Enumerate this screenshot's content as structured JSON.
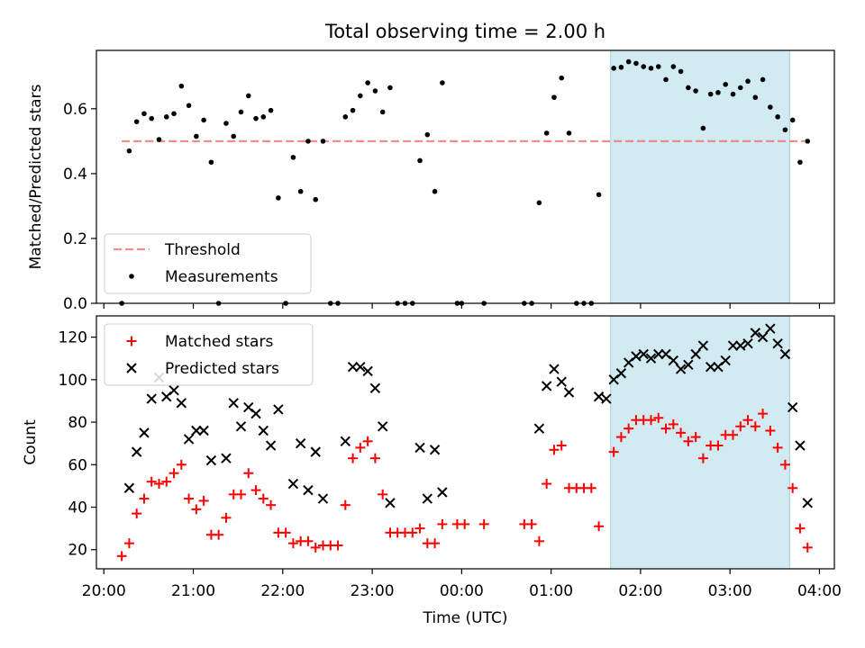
{
  "chart_data": [
    {
      "type": "scatter",
      "title": "Total observing time = 2.00 h",
      "xlabel": "",
      "ylabel": "Matched/Predicted stars",
      "xlim": [
        "20:00",
        "04:00"
      ],
      "ylim": [
        0,
        0.78
      ],
      "yticks": [
        "0.0",
        "0.2",
        "0.4",
        "0.6"
      ],
      "shaded_span": [
        "01:40",
        "03:40"
      ],
      "shade_color": "#add8e6",
      "legend_position": "lower left",
      "threshold": {
        "name": "Threshold",
        "value": 0.5,
        "x": [
          "20:12",
          "03:50"
        ],
        "color": "#f08080"
      },
      "series": [
        {
          "name": "Measurements",
          "marker": "dot",
          "color": "#000000",
          "points": [
            [
              "20:12",
              0.0
            ],
            [
              "20:17",
              0.47
            ],
            [
              "20:22",
              0.56
            ],
            [
              "20:27",
              0.585
            ],
            [
              "20:32",
              0.57
            ],
            [
              "20:37",
              0.505
            ],
            [
              "20:42",
              0.575
            ],
            [
              "20:47",
              0.585
            ],
            [
              "20:52",
              0.67
            ],
            [
              "20:57",
              0.61
            ],
            [
              "21:02",
              0.515
            ],
            [
              "21:07",
              0.565
            ],
            [
              "21:12",
              0.435
            ],
            [
              "21:17",
              0.0
            ],
            [
              "21:22",
              0.555
            ],
            [
              "21:27",
              0.515
            ],
            [
              "21:32",
              0.59
            ],
            [
              "21:37",
              0.64
            ],
            [
              "21:42",
              0.57
            ],
            [
              "21:47",
              0.575
            ],
            [
              "21:52",
              0.595
            ],
            [
              "21:57",
              0.325
            ],
            [
              "22:02",
              0.0
            ],
            [
              "22:07",
              0.45
            ],
            [
              "22:12",
              0.345
            ],
            [
              "22:17",
              0.5
            ],
            [
              "22:22",
              0.32
            ],
            [
              "22:27",
              0.5
            ],
            [
              "22:32",
              0.0
            ],
            [
              "22:37",
              0.0
            ],
            [
              "22:42",
              0.575
            ],
            [
              "22:47",
              0.595
            ],
            [
              "22:52",
              0.64
            ],
            [
              "22:57",
              0.68
            ],
            [
              "23:02",
              0.655
            ],
            [
              "23:07",
              0.59
            ],
            [
              "23:12",
              0.665
            ],
            [
              "23:17",
              0.0
            ],
            [
              "23:22",
              0.0
            ],
            [
              "23:27",
              0.0
            ],
            [
              "23:32",
              0.44
            ],
            [
              "23:37",
              0.52
            ],
            [
              "23:42",
              0.345
            ],
            [
              "23:47",
              0.68
            ],
            [
              "23:57",
              0.0
            ],
            [
              "00:00",
              0.0
            ],
            [
              "00:15",
              0.0
            ],
            [
              "00:42",
              0.0
            ],
            [
              "00:47",
              0.0
            ],
            [
              "00:52",
              0.31
            ],
            [
              "00:57",
              0.525
            ],
            [
              "01:02",
              0.635
            ],
            [
              "01:07",
              0.695
            ],
            [
              "01:12",
              0.525
            ],
            [
              "01:17",
              0.0
            ],
            [
              "01:22",
              0.0
            ],
            [
              "01:27",
              0.0
            ],
            [
              "01:32",
              0.335
            ],
            [
              "01:42",
              0.725
            ],
            [
              "01:47",
              0.728
            ],
            [
              "01:52",
              0.745
            ],
            [
              "01:57",
              0.74
            ],
            [
              "02:02",
              0.73
            ],
            [
              "02:07",
              0.725
            ],
            [
              "02:12",
              0.73
            ],
            [
              "02:17",
              0.69
            ],
            [
              "02:22",
              0.73
            ],
            [
              "02:27",
              0.715
            ],
            [
              "02:32",
              0.665
            ],
            [
              "02:37",
              0.655
            ],
            [
              "02:42",
              0.54
            ],
            [
              "02:47",
              0.645
            ],
            [
              "02:52",
              0.65
            ],
            [
              "02:57",
              0.675
            ],
            [
              "03:02",
              0.645
            ],
            [
              "03:07",
              0.665
            ],
            [
              "03:12",
              0.685
            ],
            [
              "03:17",
              0.635
            ],
            [
              "03:22",
              0.69
            ],
            [
              "03:27",
              0.605
            ],
            [
              "03:32",
              0.575
            ],
            [
              "03:37",
              0.535
            ],
            [
              "03:42",
              0.565
            ],
            [
              "03:47",
              0.435
            ],
            [
              "03:52",
              0.5
            ]
          ]
        }
      ]
    },
    {
      "type": "scatter",
      "title": "",
      "xlabel": "Time (UTC)",
      "ylabel": "Count",
      "xlim": [
        "20:00",
        "04:00"
      ],
      "ylim": [
        11,
        130
      ],
      "yticks": [
        "20",
        "40",
        "60",
        "80",
        "100",
        "120"
      ],
      "xticks": [
        "20:00",
        "21:00",
        "22:00",
        "23:00",
        "00:00",
        "01:00",
        "02:00",
        "03:00",
        "04:00"
      ],
      "shaded_span": [
        "01:40",
        "03:40"
      ],
      "shade_color": "#add8e6",
      "legend_position": "upper left",
      "series": [
        {
          "name": "Matched stars",
          "marker": "plus",
          "color": "#ff0000",
          "points": [
            [
              "20:12",
              17
            ],
            [
              "20:17",
              23
            ],
            [
              "20:22",
              37
            ],
            [
              "20:27",
              44
            ],
            [
              "20:32",
              52
            ],
            [
              "20:37",
              51
            ],
            [
              "20:42",
              52
            ],
            [
              "20:47",
              56
            ],
            [
              "20:52",
              60
            ],
            [
              "20:57",
              44
            ],
            [
              "21:02",
              39
            ],
            [
              "21:07",
              43
            ],
            [
              "21:12",
              27
            ],
            [
              "21:17",
              27
            ],
            [
              "21:22",
              35
            ],
            [
              "21:27",
              46
            ],
            [
              "21:32",
              46
            ],
            [
              "21:37",
              56
            ],
            [
              "21:42",
              48
            ],
            [
              "21:47",
              44
            ],
            [
              "21:52",
              41
            ],
            [
              "21:57",
              28
            ],
            [
              "22:02",
              28
            ],
            [
              "22:07",
              23
            ],
            [
              "22:12",
              24
            ],
            [
              "22:17",
              24
            ],
            [
              "22:22",
              21
            ],
            [
              "22:27",
              22
            ],
            [
              "22:32",
              22
            ],
            [
              "22:37",
              22
            ],
            [
              "22:42",
              41
            ],
            [
              "22:47",
              63
            ],
            [
              "22:52",
              68
            ],
            [
              "22:57",
              71
            ],
            [
              "23:02",
              63
            ],
            [
              "23:07",
              46
            ],
            [
              "23:12",
              28
            ],
            [
              "23:17",
              28
            ],
            [
              "23:22",
              28
            ],
            [
              "23:27",
              28
            ],
            [
              "23:32",
              30
            ],
            [
              "23:37",
              23
            ],
            [
              "23:42",
              23
            ],
            [
              "23:47",
              32
            ],
            [
              "23:57",
              32
            ],
            [
              "00:02",
              32
            ],
            [
              "00:15",
              32
            ],
            [
              "00:42",
              32
            ],
            [
              "00:47",
              32
            ],
            [
              "00:52",
              24
            ],
            [
              "00:57",
              51
            ],
            [
              "01:02",
              67
            ],
            [
              "01:07",
              69
            ],
            [
              "01:12",
              49
            ],
            [
              "01:17",
              49
            ],
            [
              "01:22",
              49
            ],
            [
              "01:27",
              49
            ],
            [
              "01:32",
              31
            ],
            [
              "01:42",
              66
            ],
            [
              "01:47",
              73
            ],
            [
              "01:52",
              77
            ],
            [
              "01:57",
              81
            ],
            [
              "02:02",
              81
            ],
            [
              "02:07",
              81
            ],
            [
              "02:12",
              82
            ],
            [
              "02:17",
              77
            ],
            [
              "02:22",
              79
            ],
            [
              "02:27",
              75
            ],
            [
              "02:32",
              71
            ],
            [
              "02:37",
              73
            ],
            [
              "02:42",
              63
            ],
            [
              "02:47",
              69
            ],
            [
              "02:52",
              69
            ],
            [
              "02:57",
              74
            ],
            [
              "03:02",
              74
            ],
            [
              "03:07",
              78
            ],
            [
              "03:12",
              81
            ],
            [
              "03:17",
              78
            ],
            [
              "03:22",
              84
            ],
            [
              "03:27",
              76
            ],
            [
              "03:32",
              68
            ],
            [
              "03:37",
              60
            ],
            [
              "03:42",
              49
            ],
            [
              "03:47",
              30
            ],
            [
              "03:52",
              21
            ]
          ]
        },
        {
          "name": "Predicted stars",
          "marker": "x",
          "color": "#000000",
          "points": [
            [
              "20:17",
              49
            ],
            [
              "20:22",
              66
            ],
            [
              "20:27",
              75
            ],
            [
              "20:32",
              91
            ],
            [
              "20:37",
              101
            ],
            [
              "20:42",
              92
            ],
            [
              "20:47",
              95
            ],
            [
              "20:52",
              89
            ],
            [
              "20:57",
              72
            ],
            [
              "21:02",
              76
            ],
            [
              "21:07",
              76
            ],
            [
              "21:12",
              62
            ],
            [
              "21:22",
              63
            ],
            [
              "21:27",
              89
            ],
            [
              "21:32",
              78
            ],
            [
              "21:37",
              87
            ],
            [
              "21:42",
              84
            ],
            [
              "21:47",
              76
            ],
            [
              "21:52",
              69
            ],
            [
              "21:57",
              86
            ],
            [
              "22:07",
              51
            ],
            [
              "22:12",
              70
            ],
            [
              "22:17",
              48
            ],
            [
              "22:22",
              66
            ],
            [
              "22:27",
              44
            ],
            [
              "22:42",
              71
            ],
            [
              "22:47",
              106
            ],
            [
              "22:52",
              106
            ],
            [
              "22:57",
              104
            ],
            [
              "23:02",
              96
            ],
            [
              "23:07",
              78
            ],
            [
              "23:12",
              42
            ],
            [
              "23:32",
              68
            ],
            [
              "23:37",
              44
            ],
            [
              "23:42",
              67
            ],
            [
              "23:47",
              47
            ],
            [
              "00:52",
              77
            ],
            [
              "00:57",
              97
            ],
            [
              "01:02",
              105
            ],
            [
              "01:07",
              99
            ],
            [
              "01:12",
              94
            ],
            [
              "01:32",
              92
            ],
            [
              "01:37",
              91
            ],
            [
              "01:42",
              100
            ],
            [
              "01:47",
              103
            ],
            [
              "01:52",
              108
            ],
            [
              "01:57",
              111
            ],
            [
              "02:02",
              112
            ],
            [
              "02:07",
              110
            ],
            [
              "02:12",
              112
            ],
            [
              "02:17",
              112
            ],
            [
              "02:22",
              109
            ],
            [
              "02:27",
              105
            ],
            [
              "02:32",
              107
            ],
            [
              "02:37",
              112
            ],
            [
              "02:42",
              116
            ],
            [
              "02:47",
              106
            ],
            [
              "02:52",
              106
            ],
            [
              "02:57",
              109
            ],
            [
              "03:02",
              116
            ],
            [
              "03:07",
              116
            ],
            [
              "03:12",
              117
            ],
            [
              "03:17",
              122
            ],
            [
              "03:22",
              120
            ],
            [
              "03:27",
              124
            ],
            [
              "03:32",
              117
            ],
            [
              "03:37",
              112
            ],
            [
              "03:42",
              87
            ],
            [
              "03:47",
              69
            ],
            [
              "03:52",
              42
            ]
          ]
        }
      ]
    }
  ]
}
